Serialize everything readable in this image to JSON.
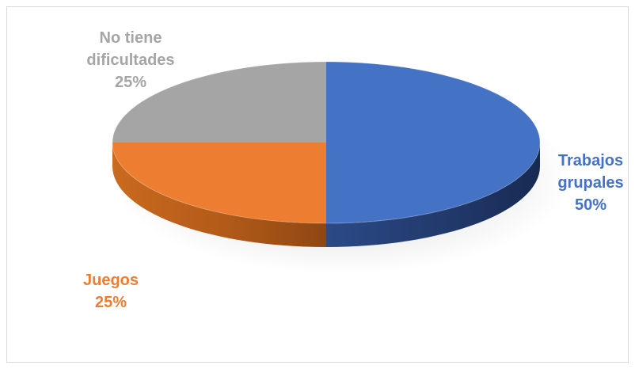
{
  "chart_data": {
    "type": "pie",
    "title": "",
    "series": [
      {
        "category": "Trabajos grupales",
        "value": 50,
        "display": [
          "Trabajos",
          "grupales",
          "50%"
        ],
        "color": "#4472C4"
      },
      {
        "category": "Juegos",
        "value": 25,
        "display": [
          "Juegos",
          "25%"
        ],
        "color": "#ED7D31"
      },
      {
        "category": "No tiene dificultades",
        "value": 25,
        "display": [
          "No tiene",
          "dificultades",
          "25%"
        ],
        "color": "#A5A5A5"
      }
    ],
    "legend": "none",
    "style": "3d-pie"
  }
}
